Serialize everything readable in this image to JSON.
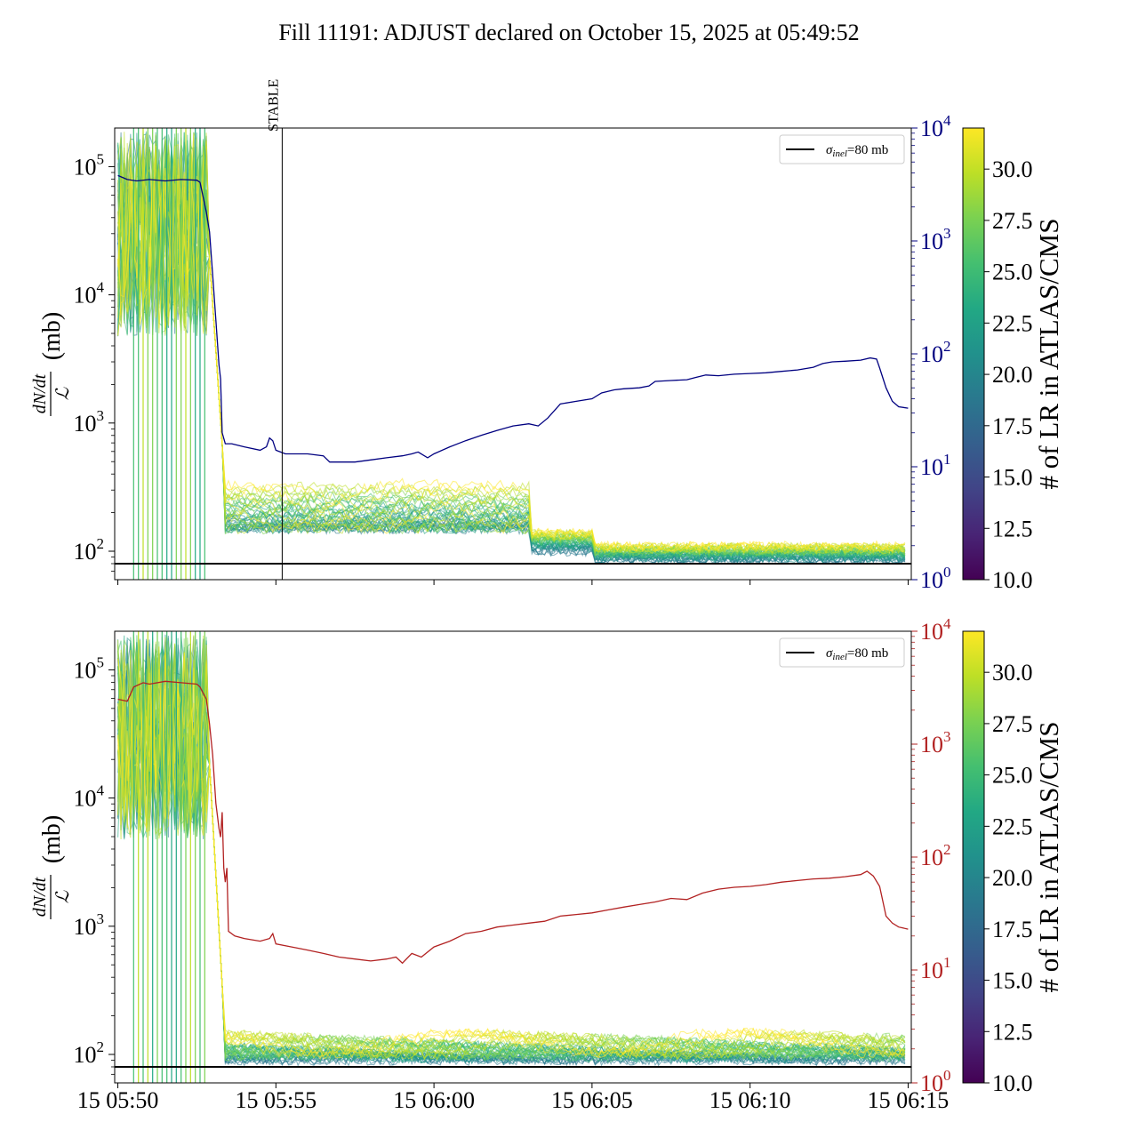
{
  "title": "Fill 11191: ADJUST declared on October 15, 2025 at 05:49:52",
  "chart_data": [
    {
      "type": "line",
      "panel": "top",
      "ylabel_num": "dN/dt",
      "ylabel_den": "ℒ",
      "ylabel_unit": "(mb)",
      "yscale": "log",
      "ylim": [
        60,
        200000
      ],
      "yticks": [
        {
          "base": "10",
          "exp": "2",
          "value": 100
        },
        {
          "base": "10",
          "exp": "3",
          "value": 1000
        },
        {
          "base": "10",
          "exp": "4",
          "value": 10000
        },
        {
          "base": "10",
          "exp": "5",
          "value": 100000
        }
      ],
      "y2scale": "log",
      "y2lim": [
        1,
        10000
      ],
      "y2color": "#000080",
      "y2ticks": [
        {
          "base": "10",
          "exp": "0",
          "value": 1
        },
        {
          "base": "10",
          "exp": "1",
          "value": 10
        },
        {
          "base": "10",
          "exp": "2",
          "value": 100
        },
        {
          "base": "10",
          "exp": "3",
          "value": 1000
        },
        {
          "base": "10",
          "exp": "4",
          "value": 10000
        }
      ],
      "xlim_minutes": [
        -0.1,
        25.1
      ],
      "xticks": [
        "15 05:50",
        "15 05:55",
        "15 06:00",
        "15 06:05",
        "15 06:10",
        "15 06:15"
      ],
      "show_xtick_labels": false,
      "vline": {
        "x": 5.2,
        "label": "STABLE"
      },
      "hline": {
        "y": 80,
        "label": "σinel=80 mb"
      },
      "legend": {
        "placement": "top-right",
        "entry_sub": "inel",
        "entry_rest": "=80 mb"
      },
      "y2_series": [
        [
          0.0,
          3800
        ],
        [
          0.3,
          3500
        ],
        [
          0.6,
          3400
        ],
        [
          1.0,
          3500
        ],
        [
          1.5,
          3400
        ],
        [
          2.0,
          3500
        ],
        [
          2.5,
          3450
        ],
        [
          2.6,
          3300
        ],
        [
          2.8,
          1800
        ],
        [
          2.9,
          1200
        ],
        [
          3.0,
          500
        ],
        [
          3.1,
          200
        ],
        [
          3.2,
          80
        ],
        [
          3.25,
          60
        ],
        [
          3.3,
          20
        ],
        [
          3.4,
          16
        ],
        [
          3.6,
          16
        ],
        [
          4.0,
          15
        ],
        [
          4.5,
          14
        ],
        [
          4.7,
          15
        ],
        [
          4.8,
          18
        ],
        [
          4.9,
          17
        ],
        [
          5.0,
          14
        ],
        [
          5.3,
          13
        ],
        [
          5.5,
          13
        ],
        [
          6.0,
          13
        ],
        [
          6.5,
          12.5
        ],
        [
          6.7,
          11
        ],
        [
          7.0,
          11
        ],
        [
          7.5,
          11
        ],
        [
          8.0,
          11.5
        ],
        [
          8.5,
          12
        ],
        [
          9.0,
          12.5
        ],
        [
          9.3,
          13
        ],
        [
          9.5,
          13.5
        ],
        [
          9.8,
          12
        ],
        [
          10.0,
          13
        ],
        [
          10.5,
          15
        ],
        [
          11.0,
          17
        ],
        [
          11.5,
          19
        ],
        [
          12.0,
          21
        ],
        [
          12.5,
          23
        ],
        [
          13.0,
          24
        ],
        [
          13.3,
          23
        ],
        [
          13.6,
          27
        ],
        [
          14.0,
          36
        ],
        [
          14.5,
          38
        ],
        [
          15.0,
          40
        ],
        [
          15.3,
          45
        ],
        [
          15.7,
          48
        ],
        [
          16.0,
          49
        ],
        [
          16.5,
          50
        ],
        [
          16.8,
          52
        ],
        [
          17.0,
          57
        ],
        [
          17.5,
          58
        ],
        [
          18.0,
          59
        ],
        [
          18.3,
          62
        ],
        [
          18.6,
          65
        ],
        [
          19.0,
          64
        ],
        [
          19.5,
          66
        ],
        [
          20.0,
          67
        ],
        [
          20.5,
          68
        ],
        [
          21.0,
          70
        ],
        [
          21.5,
          72
        ],
        [
          22.0,
          76
        ],
        [
          22.3,
          82
        ],
        [
          22.6,
          85
        ],
        [
          23.0,
          86
        ],
        [
          23.5,
          88
        ],
        [
          23.8,
          92
        ],
        [
          24.0,
          90
        ],
        [
          24.1,
          75
        ],
        [
          24.3,
          50
        ],
        [
          24.5,
          38
        ],
        [
          24.7,
          34
        ],
        [
          25.0,
          33
        ]
      ]
    },
    {
      "type": "line",
      "panel": "bottom",
      "ylabel_num": "dN/dt",
      "ylabel_den": "ℒ",
      "ylabel_unit": "(mb)",
      "yscale": "log",
      "ylim": [
        60,
        200000
      ],
      "yticks": [
        {
          "base": "10",
          "exp": "2",
          "value": 100
        },
        {
          "base": "10",
          "exp": "3",
          "value": 1000
        },
        {
          "base": "10",
          "exp": "4",
          "value": 10000
        },
        {
          "base": "10",
          "exp": "5",
          "value": 100000
        }
      ],
      "y2scale": "log",
      "y2lim": [
        1,
        10000
      ],
      "y2color": "#b22222",
      "y2ticks": [
        {
          "base": "10",
          "exp": "0",
          "value": 1
        },
        {
          "base": "10",
          "exp": "1",
          "value": 10
        },
        {
          "base": "10",
          "exp": "2",
          "value": 100
        },
        {
          "base": "10",
          "exp": "3",
          "value": 1000
        },
        {
          "base": "10",
          "exp": "4",
          "value": 10000
        }
      ],
      "xlim_minutes": [
        -0.1,
        25.1
      ],
      "xticks": [
        "15 05:50",
        "15 05:55",
        "15 06:00",
        "15 06:05",
        "15 06:10",
        "15 06:15"
      ],
      "show_xtick_labels": true,
      "hline": {
        "y": 80,
        "label": "σinel=80 mb"
      },
      "legend": {
        "placement": "top-right",
        "entry_sub": "inel",
        "entry_rest": "=80 mb"
      },
      "y2_series": [
        [
          0.0,
          2500
        ],
        [
          0.3,
          2400
        ],
        [
          0.5,
          3200
        ],
        [
          0.8,
          3500
        ],
        [
          1.0,
          3400
        ],
        [
          1.5,
          3600
        ],
        [
          2.0,
          3500
        ],
        [
          2.5,
          3400
        ],
        [
          2.6,
          3200
        ],
        [
          2.8,
          2500
        ],
        [
          2.9,
          1500
        ],
        [
          3.0,
          800
        ],
        [
          3.1,
          300
        ],
        [
          3.2,
          180
        ],
        [
          3.25,
          150
        ],
        [
          3.3,
          250
        ],
        [
          3.35,
          80
        ],
        [
          3.4,
          60
        ],
        [
          3.45,
          80
        ],
        [
          3.5,
          22
        ],
        [
          3.7,
          20
        ],
        [
          4.0,
          19
        ],
        [
          4.5,
          18
        ],
        [
          4.8,
          19
        ],
        [
          4.9,
          21
        ],
        [
          5.0,
          17
        ],
        [
          5.5,
          16
        ],
        [
          6.0,
          15
        ],
        [
          6.5,
          14
        ],
        [
          7.0,
          13
        ],
        [
          7.5,
          12.5
        ],
        [
          8.0,
          12
        ],
        [
          8.5,
          12.5
        ],
        [
          8.8,
          13
        ],
        [
          9.0,
          11.5
        ],
        [
          9.3,
          14
        ],
        [
          9.6,
          13
        ],
        [
          10.0,
          16
        ],
        [
          10.5,
          18
        ],
        [
          11.0,
          21
        ],
        [
          11.5,
          22
        ],
        [
          12.0,
          24
        ],
        [
          12.5,
          25
        ],
        [
          13.0,
          26
        ],
        [
          13.5,
          27
        ],
        [
          14.0,
          30
        ],
        [
          14.5,
          31
        ],
        [
          15.0,
          32
        ],
        [
          15.5,
          34
        ],
        [
          16.0,
          36
        ],
        [
          16.5,
          38
        ],
        [
          17.0,
          40
        ],
        [
          17.5,
          43
        ],
        [
          18.0,
          42
        ],
        [
          18.5,
          48
        ],
        [
          19.0,
          52
        ],
        [
          19.5,
          54
        ],
        [
          20.0,
          55
        ],
        [
          20.5,
          57
        ],
        [
          21.0,
          60
        ],
        [
          21.5,
          62
        ],
        [
          22.0,
          64
        ],
        [
          22.5,
          65
        ],
        [
          23.0,
          67
        ],
        [
          23.5,
          70
        ],
        [
          23.7,
          75
        ],
        [
          23.9,
          68
        ],
        [
          24.1,
          55
        ],
        [
          24.3,
          30
        ],
        [
          24.5,
          26
        ],
        [
          24.7,
          24
        ],
        [
          25.0,
          23
        ]
      ]
    }
  ],
  "colorbar": {
    "label": "# of LR in ATLAS/CMS",
    "colormap": "viridis",
    "range": [
      10.0,
      32.0
    ],
    "ticks": [
      "10.0",
      "12.5",
      "15.0",
      "17.5",
      "20.0",
      "22.5",
      "25.0",
      "27.5",
      "30.0"
    ]
  }
}
